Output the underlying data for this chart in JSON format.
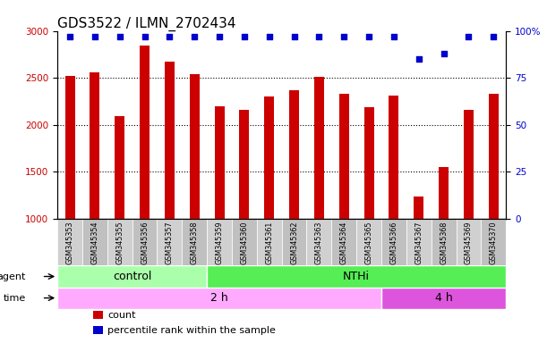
{
  "title": "GDS3522 / ILMN_2702434",
  "samples": [
    "GSM345353",
    "GSM345354",
    "GSM345355",
    "GSM345356",
    "GSM345357",
    "GSM345358",
    "GSM345359",
    "GSM345360",
    "GSM345361",
    "GSM345362",
    "GSM345363",
    "GSM345364",
    "GSM345365",
    "GSM345366",
    "GSM345367",
    "GSM345368",
    "GSM345369",
    "GSM345370"
  ],
  "counts": [
    2520,
    2560,
    2090,
    2840,
    2670,
    2540,
    2200,
    2160,
    2300,
    2370,
    2510,
    2330,
    2185,
    2310,
    1235,
    1555,
    2155,
    2330
  ],
  "percentile_ranks": [
    97,
    97,
    97,
    97,
    97,
    97,
    97,
    97,
    97,
    97,
    97,
    97,
    97,
    97,
    85,
    88,
    97,
    97
  ],
  "bar_color": "#cc0000",
  "dot_color": "#0000cc",
  "ylim_left": [
    1000,
    3000
  ],
  "ylim_right": [
    0,
    100
  ],
  "yticks_left": [
    1000,
    1500,
    2000,
    2500,
    3000
  ],
  "yticks_right": [
    0,
    25,
    50,
    75,
    100
  ],
  "ytick_right_labels": [
    "0",
    "25",
    "50",
    "75",
    "100%"
  ],
  "grid_values": [
    1500,
    2000,
    2500
  ],
  "agent_groups": [
    {
      "label": "control",
      "start": 0,
      "end": 6,
      "color": "#aaffaa"
    },
    {
      "label": "NTHi",
      "start": 6,
      "end": 18,
      "color": "#55ee55"
    }
  ],
  "time_groups": [
    {
      "label": "2 h",
      "start": 0,
      "end": 13,
      "color": "#ffaaff"
    },
    {
      "label": "4 h",
      "start": 13,
      "end": 18,
      "color": "#dd55dd"
    }
  ],
  "legend_items": [
    {
      "label": "count",
      "color": "#cc0000"
    },
    {
      "label": "percentile rank within the sample",
      "color": "#0000cc"
    }
  ],
  "sample_cell_color_even": "#d0d0d0",
  "sample_cell_color_odd": "#c0c0c0",
  "plot_bg": "#ffffff",
  "bar_width": 0.4,
  "dot_size": 20,
  "label_fontsize": 8,
  "tick_fontsize": 7.5,
  "title_fontsize": 11
}
